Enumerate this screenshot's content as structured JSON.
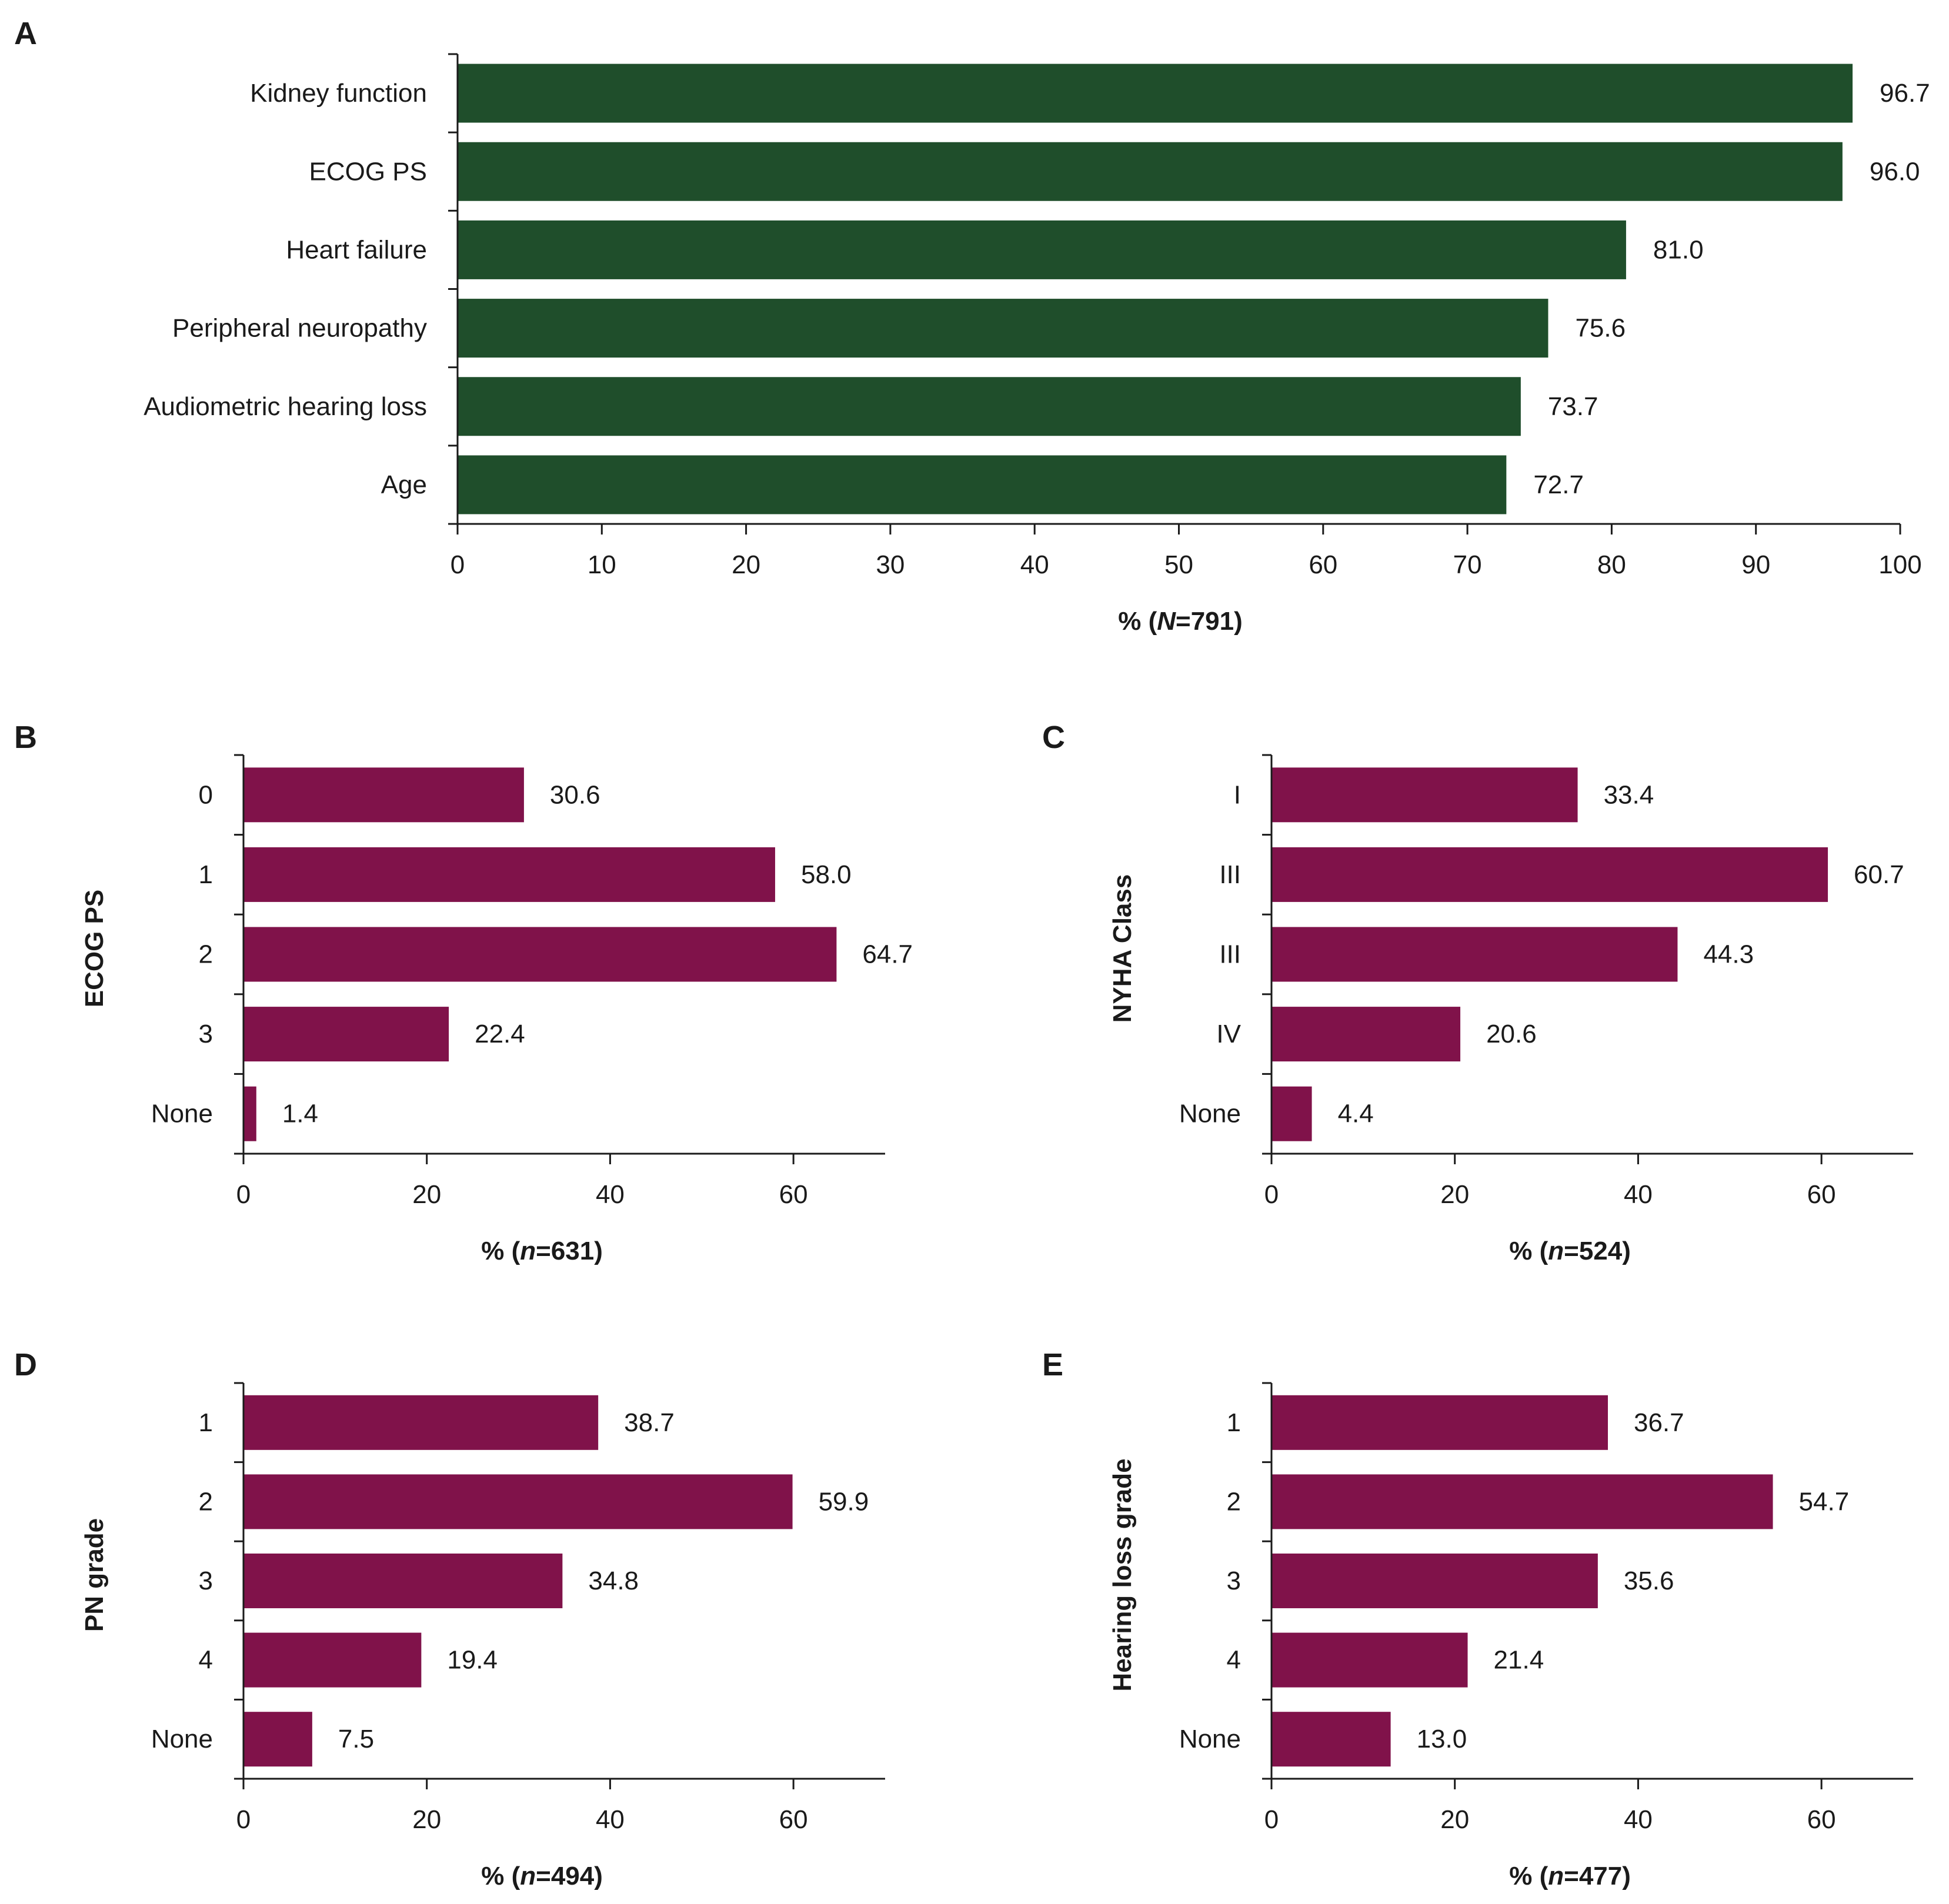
{
  "chart_data": [
    {
      "panel": "A",
      "type": "bar",
      "orientation": "horizontal",
      "categories": [
        "Kidney function",
        "ECOG PS",
        "Heart failure",
        "Peripheral neuropathy",
        "Audiometric hearing loss",
        "Age"
      ],
      "values": [
        96.7,
        96.0,
        81.0,
        75.6,
        73.7,
        72.7
      ],
      "value_labels": [
        "96.7",
        "96.0",
        "81.0",
        "75.6",
        "73.7",
        "72.7"
      ],
      "xlabel_prefix": "% (",
      "xlabel_italic": "N",
      "xlabel_suffix": "=791)",
      "ylabel": "",
      "xlim": [
        0,
        100
      ],
      "xticks": [
        0,
        10,
        20,
        30,
        40,
        50,
        60,
        70,
        80,
        90,
        100
      ],
      "color": "#1f4e2b"
    },
    {
      "panel": "B",
      "type": "bar",
      "orientation": "horizontal",
      "categories": [
        "0",
        "1",
        "2",
        "3",
        "None"
      ],
      "values": [
        30.6,
        58.0,
        64.7,
        22.4,
        1.4
      ],
      "value_labels": [
        "30.6",
        "58.0",
        "64.7",
        "22.4",
        "1.4"
      ],
      "xlabel_prefix": "% (",
      "xlabel_italic": "n",
      "xlabel_suffix": "=631)",
      "ylabel": "ECOG PS",
      "xlim": [
        0,
        70
      ],
      "xticks": [
        0,
        20,
        40,
        60
      ],
      "color": "#80124a"
    },
    {
      "panel": "C",
      "type": "bar",
      "orientation": "horizontal",
      "categories": [
        "I",
        "III",
        "III",
        "IV",
        "None"
      ],
      "values": [
        33.4,
        60.7,
        44.3,
        20.6,
        4.4
      ],
      "value_labels": [
        "33.4",
        "60.7",
        "44.3",
        "20.6",
        "4.4"
      ],
      "xlabel_prefix": "% (",
      "xlabel_italic": "n",
      "xlabel_suffix": "=524)",
      "ylabel": "NYHA Class",
      "xlim": [
        0,
        70
      ],
      "xticks": [
        0,
        20,
        40,
        60
      ],
      "color": "#80124a"
    },
    {
      "panel": "D",
      "type": "bar",
      "orientation": "horizontal",
      "categories": [
        "1",
        "2",
        "3",
        "4",
        "None"
      ],
      "values": [
        38.7,
        59.9,
        34.8,
        19.4,
        7.5
      ],
      "value_labels": [
        "38.7",
        "59.9",
        "34.8",
        "19.4",
        "7.5"
      ],
      "xlabel_prefix": "% (",
      "xlabel_italic": "n",
      "xlabel_suffix": "=494)",
      "ylabel": "PN grade",
      "xlim": [
        0,
        70
      ],
      "xticks": [
        0,
        20,
        40,
        60
      ],
      "color": "#80124a"
    },
    {
      "panel": "E",
      "type": "bar",
      "orientation": "horizontal",
      "categories": [
        "1",
        "2",
        "3",
        "4",
        "None"
      ],
      "values": [
        36.7,
        54.7,
        35.6,
        21.4,
        13.0
      ],
      "value_labels": [
        "36.7",
        "54.7",
        "35.6",
        "21.4",
        "13.0"
      ],
      "xlabel_prefix": "% (",
      "xlabel_italic": "n",
      "xlabel_suffix": "=477)",
      "ylabel": "Hearing loss grade",
      "xlim": [
        0,
        70
      ],
      "xticks": [
        0,
        20,
        40,
        60
      ],
      "color": "#80124a"
    }
  ]
}
